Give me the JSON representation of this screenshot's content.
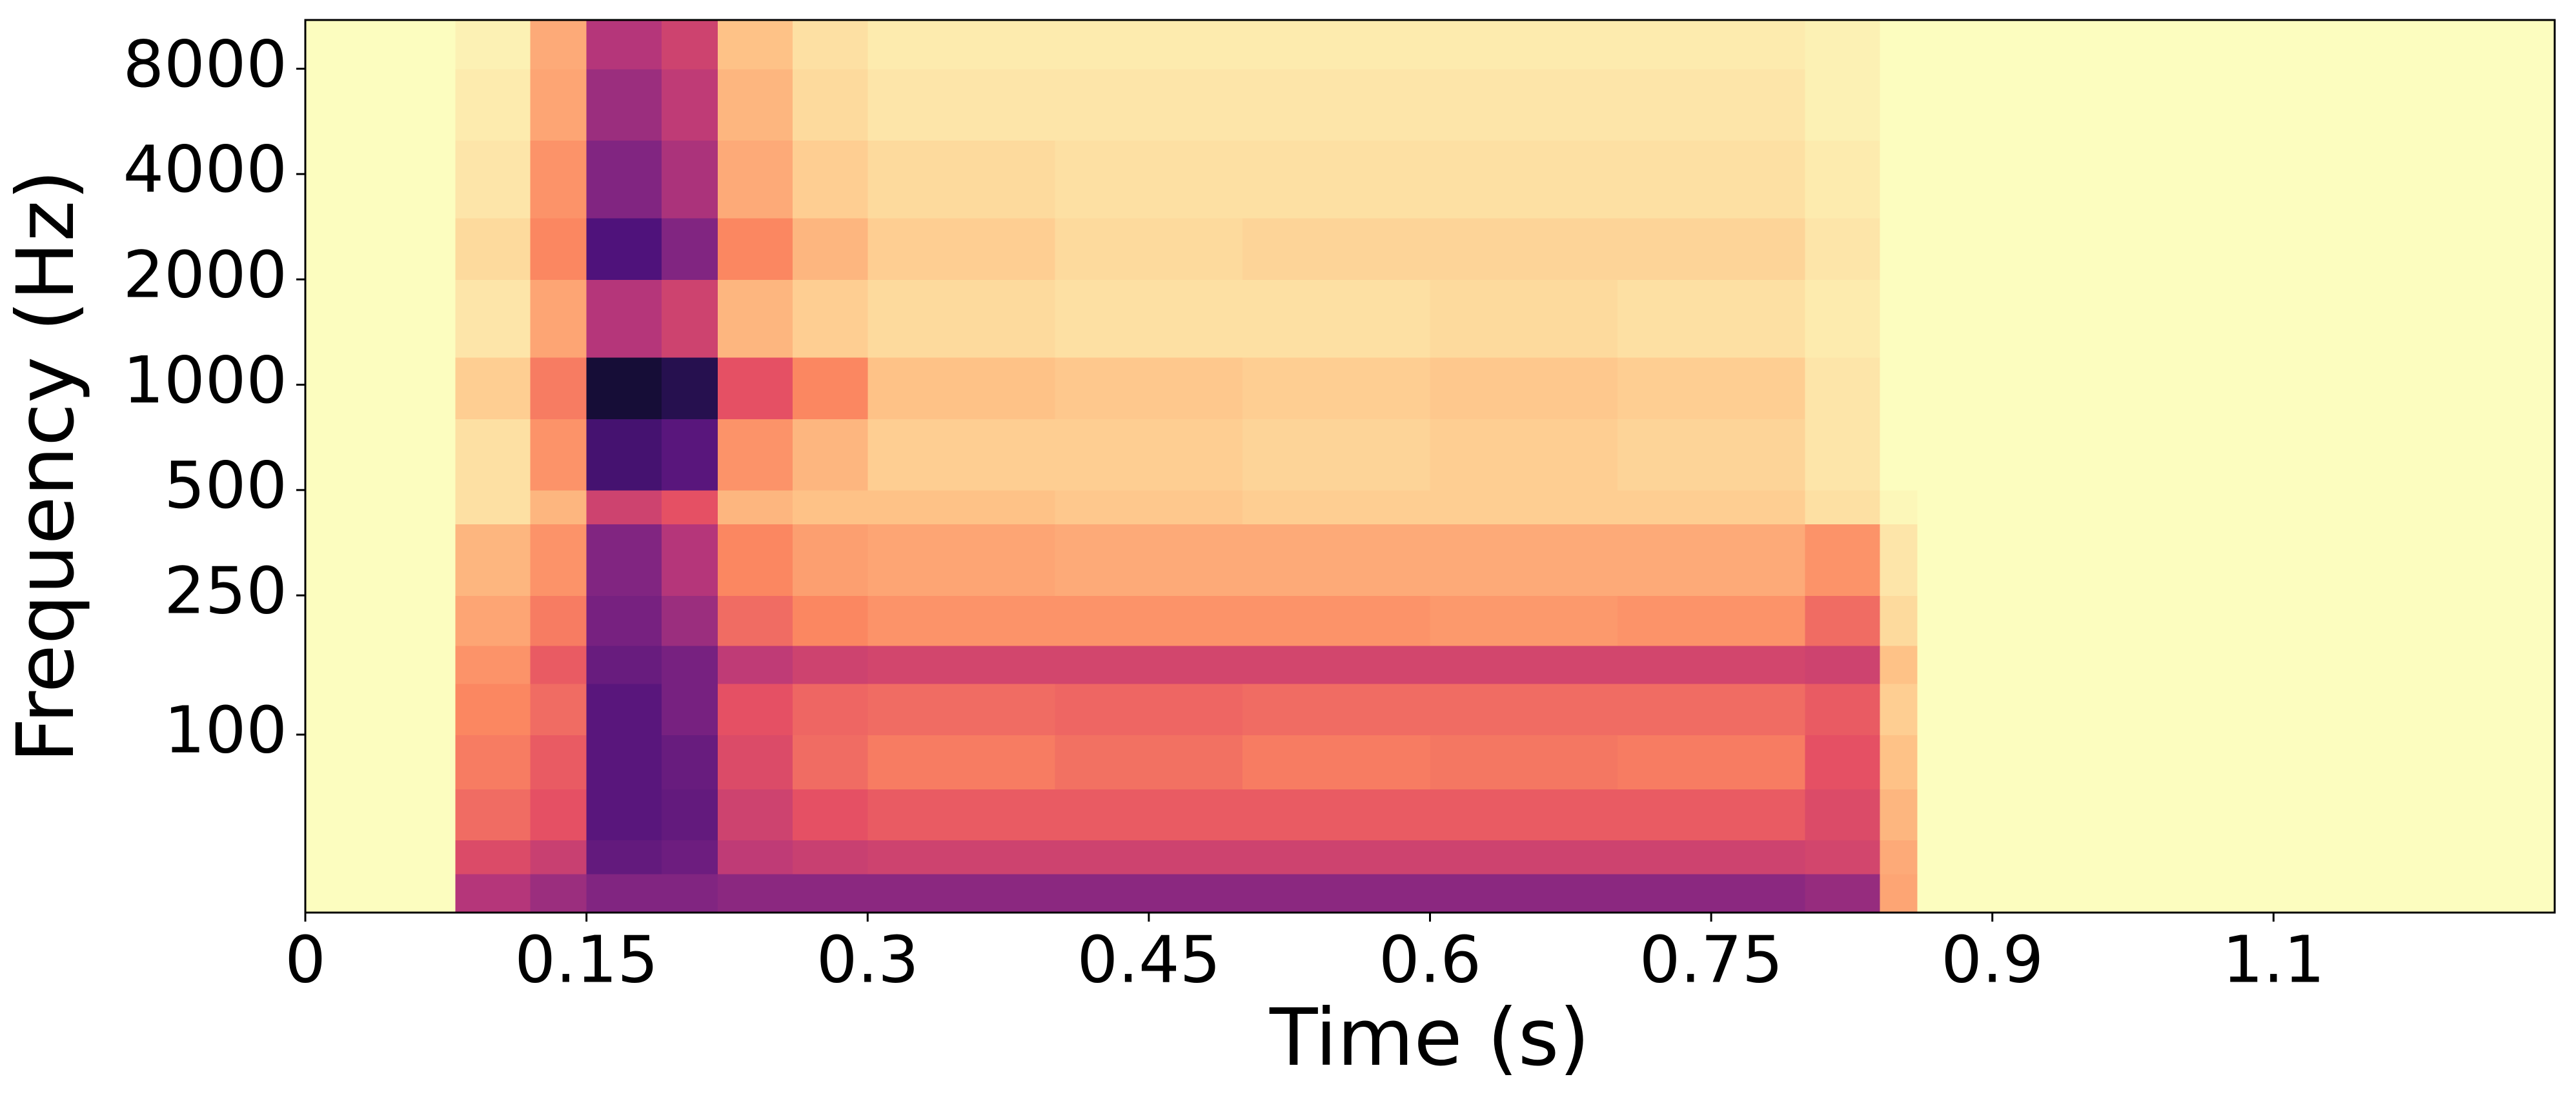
{
  "chart_data": {
    "type": "spectrogram",
    "x_label": "Time (s)",
    "y_label": "Frequency (Hz)",
    "colormap": "magma_r",
    "clim": [
      -80,
      0
    ],
    "y_scale": "log",
    "xlim": [
      0,
      1.2
    ],
    "ylim": [
      31,
      11025
    ],
    "xticks": [
      0,
      0.15,
      0.3,
      0.45,
      0.6,
      0.75,
      0.9,
      {
        "value": 1.05,
        "label": "1.1"
      }
    ],
    "yticks": [
      100,
      250,
      500,
      1000,
      2000,
      4000,
      8000
    ],
    "x_edges": [
      0,
      0.08,
      0.12,
      0.15,
      0.19,
      0.22,
      0.26,
      0.3,
      0.4,
      0.5,
      0.6,
      0.7,
      0.8,
      0.84,
      0.86,
      1.2
    ],
    "y_edges": [
      31,
      40,
      50,
      70,
      100,
      140,
      180,
      250,
      400,
      500,
      800,
      1200,
      2000,
      3000,
      5000,
      8000,
      11025
    ],
    "values": [
      [
        -80,
        -40,
        -35,
        -30,
        -30,
        -32,
        -32,
        -32,
        -32,
        -32,
        -32,
        -32,
        -34,
        -65,
        -80
      ],
      [
        -80,
        -48,
        -44,
        -24,
        -26,
        -42,
        -44,
        -45,
        -45,
        -45,
        -45,
        -45,
        -46,
        -66,
        -80
      ],
      [
        -80,
        -55,
        -50,
        -22,
        -24,
        -45,
        -50,
        -52,
        -52,
        -52,
        -52,
        -52,
        -48,
        -68,
        -80
      ],
      [
        -80,
        -58,
        -52,
        -22,
        -25,
        -48,
        -55,
        -58,
        -56,
        -58,
        -57,
        -58,
        -50,
        -70,
        -80
      ],
      [
        -80,
        -60,
        -55,
        -22,
        -28,
        -50,
        -54,
        -55,
        -54,
        -55,
        -55,
        -55,
        -52,
        -72,
        -80
      ],
      [
        -80,
        -62,
        -52,
        -25,
        -28,
        -42,
        -45,
        -46,
        -46,
        -46,
        -46,
        -46,
        -45,
        -70,
        -80
      ],
      [
        -80,
        -65,
        -58,
        -28,
        -35,
        -55,
        -60,
        -62,
        -62,
        -62,
        -63,
        -62,
        -55,
        -74,
        -80
      ],
      [
        -80,
        -68,
        -62,
        -30,
        -40,
        -60,
        -64,
        -65,
        -66,
        -66,
        -66,
        -66,
        -62,
        -76,
        -80
      ],
      [
        -80,
        -75,
        -68,
        -45,
        -50,
        -68,
        -70,
        -70,
        -71,
        -72,
        -72,
        -72,
        -75,
        -79,
        -80
      ],
      [
        -80,
        -75,
        -62,
        -18,
        -22,
        -62,
        -68,
        -72,
        -72,
        -73,
        -72,
        -73,
        -76,
        -80,
        -80
      ],
      [
        -80,
        -72,
        -58,
        -8,
        -12,
        -50,
        -60,
        -70,
        -71,
        -72,
        -71,
        -72,
        -76,
        -80,
        -80
      ],
      [
        -80,
        -76,
        -65,
        -40,
        -45,
        -68,
        -72,
        -74,
        -75,
        -75,
        -74,
        -75,
        -77,
        -80,
        -80
      ],
      [
        -80,
        -74,
        -60,
        -20,
        -30,
        -60,
        -68,
        -72,
        -74,
        -73,
        -73,
        -73,
        -76,
        -80,
        -80
      ],
      [
        -80,
        -76,
        -62,
        -30,
        -38,
        -66,
        -72,
        -74,
        -75,
        -75,
        -75,
        -75,
        -77,
        -80,
        -80
      ],
      [
        -80,
        -77,
        -65,
        -35,
        -42,
        -68,
        -74,
        -76,
        -76,
        -76,
        -76,
        -76,
        -78,
        -80,
        -80
      ],
      [
        -80,
        -78,
        -66,
        -40,
        -45,
        -70,
        -75,
        -77,
        -77,
        -77,
        -77,
        -77,
        -78,
        -80,
        -80
      ]
    ]
  }
}
